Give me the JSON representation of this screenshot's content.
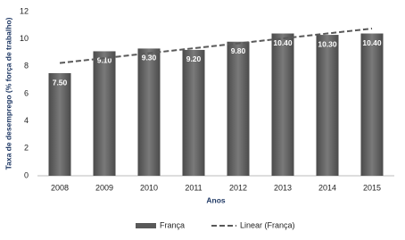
{
  "chart_data": {
    "type": "bar",
    "x_label": "Anos",
    "y_label": "Taxa de desemprego (% força de trabalho)",
    "categories": [
      "2008",
      "2009",
      "2010",
      "2011",
      "2012",
      "2013",
      "2014",
      "2015"
    ],
    "series": [
      {
        "name": "França",
        "type": "bar",
        "color": "#595959",
        "values": [
          7.5,
          9.1,
          9.3,
          9.2,
          9.8,
          10.4,
          10.3,
          10.4
        ],
        "value_labels": [
          "7.50",
          "9.10",
          "9.30",
          "9.20",
          "9.80",
          "10.40",
          "10.30",
          "10.40"
        ]
      },
      {
        "name": "Linear (França)",
        "type": "line",
        "color": "#595959",
        "dashed": true,
        "values": [
          8.24,
          8.6,
          8.96,
          9.32,
          9.68,
          10.04,
          10.4,
          10.76
        ]
      }
    ],
    "ylim": [
      0,
      12
    ],
    "yticks": [
      0,
      2,
      4,
      6,
      8,
      10,
      12
    ],
    "legend": "bottom"
  }
}
